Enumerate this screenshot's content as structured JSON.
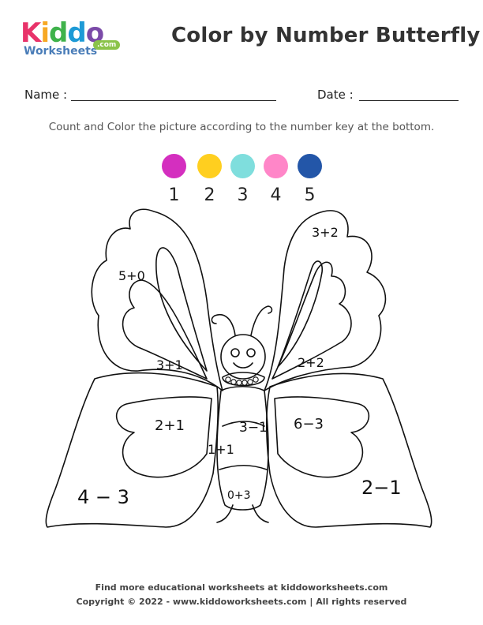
{
  "logo": {
    "brand_letters": [
      "K",
      "i",
      "d",
      "d",
      "o"
    ],
    "brand_colors": [
      "#e8336a",
      "#f7a823",
      "#3fb24b",
      "#1e9ad6",
      "#7b4aa8"
    ],
    "sub": "Worksheets",
    "tld": ".com"
  },
  "title": "Color by Number Butterfly",
  "form": {
    "name_label": "Name :",
    "date_label": "Date :"
  },
  "instructions": "Count and Color the picture according to the number key at the bottom.",
  "color_key": [
    {
      "number": "1",
      "color": "#d42fbf"
    },
    {
      "number": "2",
      "color": "#ffcf1f"
    },
    {
      "number": "3",
      "color": "#7fdedd"
    },
    {
      "number": "4",
      "color": "#ff86c8"
    },
    {
      "number": "5",
      "color": "#2356a8"
    }
  ],
  "regions": {
    "left_upper_wing_top": "5+0",
    "right_upper_wing_top": "3+2",
    "left_upper_wing_inner": "3+1",
    "right_upper_wing_inner": "2+2",
    "left_lower_wing_inner": "2+1",
    "right_lower_wing_inner": "6−3",
    "body_upper": "3−1",
    "body_middle": "1+1",
    "body_bottom": "0+3",
    "left_lower_wing_outer": "4 − 3",
    "right_lower_wing_outer": "2−1"
  },
  "footer": {
    "line1": "Find more educational worksheets at kiddoworksheets.com",
    "line2": "Copyright © 2022 - www.kiddoworksheets.com  |  All rights reserved"
  }
}
